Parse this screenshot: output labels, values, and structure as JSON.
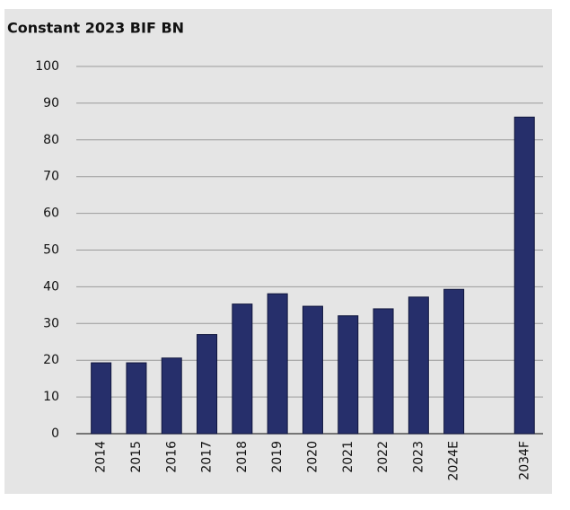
{
  "chart_data": {
    "type": "bar",
    "title": "Constant 2023 BIF BN",
    "categories": [
      "2014",
      "2015",
      "2016",
      "2017",
      "2018",
      "2019",
      "2020",
      "2021",
      "2022",
      "2023",
      "2024E",
      null,
      "2034F"
    ],
    "values": [
      19.3,
      19.3,
      20.6,
      27,
      35.3,
      38.1,
      34.7,
      32.1,
      34,
      37.2,
      39.3,
      null,
      86.2
    ],
    "color": "#262f6b",
    "ylim": [
      0,
      100
    ],
    "yticks": [
      0,
      10,
      20,
      30,
      40,
      50,
      60,
      70,
      80,
      90,
      100
    ],
    "grid": true
  }
}
